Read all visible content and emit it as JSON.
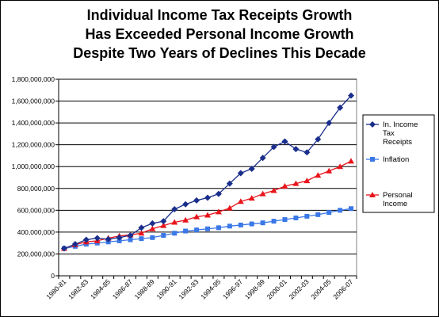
{
  "chart_data": {
    "type": "line",
    "title_lines": [
      "Individual Income Tax Receipts Growth",
      "Has Exceeded Personal Income Growth",
      "Despite Two Years of Declines This Decade"
    ],
    "categories": [
      "1980-81",
      "1981-82",
      "1982-83",
      "1983-84",
      "1984-85",
      "1985-86",
      "1986-87",
      "1987-88",
      "1988-89",
      "1989-90",
      "1990-91",
      "1991-92",
      "1992-93",
      "1993-94",
      "1994-95",
      "1995-96",
      "1996-97",
      "1997-98",
      "1998-99",
      "1999-00",
      "2000-01",
      "2001-02",
      "2002-03",
      "2003-04",
      "2004-05",
      "2005-06",
      "2006-07"
    ],
    "tick_labels": [
      "1980-81",
      "1982-83",
      "1984-85",
      "1986-87",
      "1988-89",
      "1990-91",
      "1992-93",
      "1994-95",
      "1996-97",
      "1998-99",
      "2000-01",
      "2002-03",
      "2004-05",
      "2006-07"
    ],
    "ylim": [
      0,
      1800000000
    ],
    "yticks": [
      "0",
      "200,000,000",
      "400,000,000",
      "600,000,000",
      "800,000,000",
      "1,000,000,000",
      "1,200,000,000",
      "1,400,000,000",
      "1,600,000,000",
      "1,800,000,000"
    ],
    "legend_position": "right",
    "grid": "horizontal",
    "series": [
      {
        "name_lines": [
          "In. Income",
          "Tax",
          "Receipts"
        ],
        "color": "#1a2e8c",
        "marker": "diamond",
        "values": [
          250000000,
          290000000,
          330000000,
          345000000,
          335000000,
          350000000,
          370000000,
          440000000,
          480000000,
          500000000,
          610000000,
          655000000,
          690000000,
          715000000,
          750000000,
          845000000,
          940000000,
          980000000,
          1080000000,
          1180000000,
          1230000000,
          1160000000,
          1130000000,
          1250000000,
          1400000000,
          1540000000,
          1650000000
        ]
      },
      {
        "name_lines": [
          "Inflation"
        ],
        "color": "#3b78e7",
        "marker": "square",
        "values": [
          250000000,
          270000000,
          290000000,
          300000000,
          310000000,
          320000000,
          330000000,
          340000000,
          350000000,
          370000000,
          390000000,
          410000000,
          420000000,
          430000000,
          440000000,
          455000000,
          465000000,
          475000000,
          485000000,
          500000000,
          515000000,
          530000000,
          545000000,
          560000000,
          580000000,
          600000000,
          615000000
        ]
      },
      {
        "name_lines": [
          "Personal",
          "Income"
        ],
        "color": "#e8141b",
        "marker": "triangle",
        "values": [
          250000000,
          285000000,
          310000000,
          320000000,
          345000000,
          365000000,
          375000000,
          390000000,
          430000000,
          460000000,
          490000000,
          510000000,
          540000000,
          555000000,
          585000000,
          620000000,
          680000000,
          710000000,
          750000000,
          780000000,
          820000000,
          845000000,
          870000000,
          920000000,
          960000000,
          1000000000,
          1050000000
        ]
      }
    ]
  }
}
